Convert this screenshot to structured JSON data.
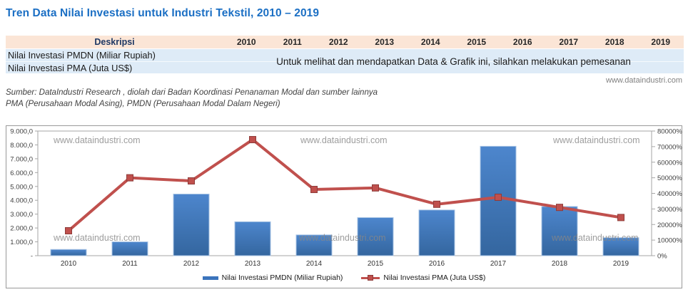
{
  "title": "Tren Data Nilai Investasi untuk Industri Tekstil, 2010 – 2019",
  "table": {
    "header": {
      "description_label": "Deskripsi",
      "years": [
        "2010",
        "2011",
        "2012",
        "2013",
        "2014",
        "2015",
        "2016",
        "2017",
        "2018",
        "2019"
      ]
    },
    "rows": [
      {
        "label": "Nilai Investasi PMDN (Miliar Rupiah)"
      },
      {
        "label": "Nilai Investasi PMA (Juta US$)"
      }
    ],
    "locked_message": "Untuk melihat dan mendapatkan Data & Grafik ini, silahkan melakukan pemesanan"
  },
  "website": "www.dataindustri.com",
  "source_line1": "Sumber: DataIndustri Research , diolah dari Badan Koordinasi Penanaman Modal dan sumber lainnya",
  "source_line2": "PMA (Perusahaan Modal Asing), PMDN (Perusahaan Modal Dalam Negeri)",
  "watermark": "www.dataindustri.com",
  "colors": {
    "title_blue": "#1b6fc4",
    "header_band": "#fbe5d6",
    "body_band": "#deebf7",
    "bar_blue": "#3b74bc",
    "line_red": "#c0504d",
    "axis_grey": "#a6a6a6"
  },
  "chart_data": {
    "type": "bar",
    "subtype": "bar+line combo, dual axis",
    "categories": [
      "2010",
      "2011",
      "2012",
      "2013",
      "2014",
      "2015",
      "2016",
      "2017",
      "2018",
      "2019"
    ],
    "series": [
      {
        "name": "Nilai Investasi PMDN (Miliar Rupiah)",
        "type": "bar",
        "axis": "left",
        "color": "#3b74bc",
        "values": [
          450,
          1000,
          4450,
          2450,
          1500,
          2750,
          3300,
          7900,
          3550,
          1300
        ]
      },
      {
        "name": "Nilai Investasi PMA (Juta US$)",
        "type": "line",
        "axis": "right",
        "color": "#c0504d",
        "values": [
          16000,
          50000,
          48000,
          74500,
          42500,
          43500,
          33000,
          37500,
          31000,
          24500
        ]
      }
    ],
    "left_axis": {
      "min": 0,
      "max": 9000,
      "tick_step": 1000,
      "tick_labels": [
        "-",
        "1.000,0",
        "2.000,0",
        "3.000,0",
        "4.000,0",
        "5.000,0",
        "6.000,0",
        "7.000,0",
        "8.000,0",
        "9.000,0"
      ]
    },
    "right_axis": {
      "min": 0,
      "max": 80000,
      "tick_step": 10000,
      "tick_labels": [
        "0%",
        "10000%",
        "20000%",
        "30000%",
        "40000%",
        "50000%",
        "60000%",
        "70000%",
        "80000%"
      ]
    },
    "legend_position": "bottom",
    "gridlines": false
  }
}
